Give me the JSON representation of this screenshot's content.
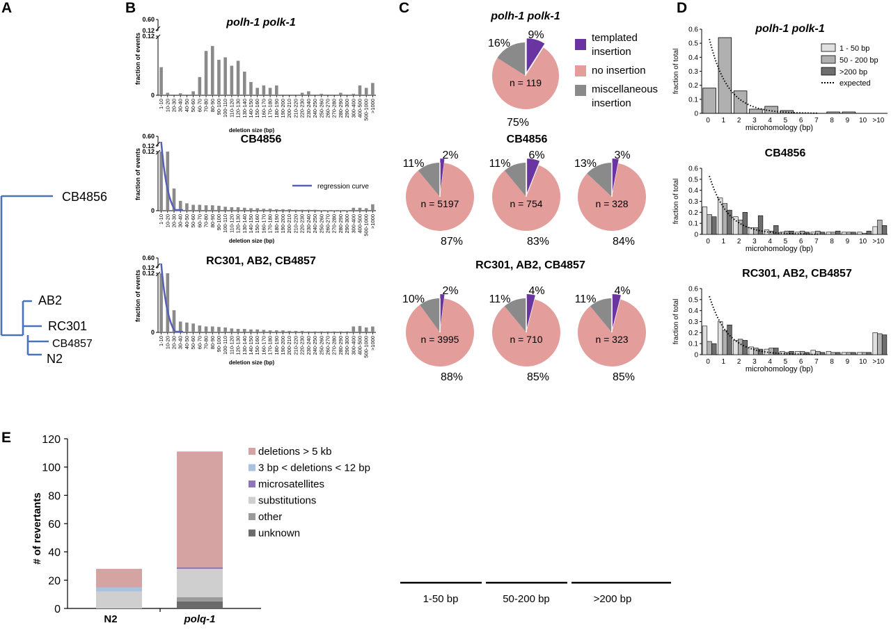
{
  "panels": {
    "A": "A",
    "B": "B",
    "C": "C",
    "D": "D",
    "E": "E"
  },
  "colors": {
    "tree": "#4a72b8",
    "bar_gray": "#8a8a8a",
    "regression": "#5560b6",
    "templated": "#6a35a0",
    "no_insertion": "#e39d9b",
    "misc": "#8a8a8a",
    "d_small": "#e0e0e0",
    "d_mid": "#b0b0b0",
    "d_large": "#6e6e6e",
    "e_del5kb": "#d5a3a1",
    "e_del3_12": "#a9c2e0",
    "e_micro": "#8f74b8",
    "e_subst": "#cfcfcf",
    "e_other": "#9a9a9a",
    "e_unknown": "#6a6a6a"
  },
  "tree": {
    "leaves": [
      "CB4856",
      "AB2",
      "RC301",
      "CB4857",
      "N2"
    ]
  },
  "chart_data": [
    {
      "id": "B",
      "type": "bar",
      "title_top": "polh-1 polk-1",
      "title_mid": "CB4856",
      "title_bot": "RC301, AB2, CB4857",
      "ylabel": "fraction of events",
      "xlabel": "deletion size (bp)",
      "yticks": [
        "0",
        "0.12",
        "0.12",
        "0.60"
      ],
      "legend": "regression curve",
      "categories": [
        "1-10",
        "10-20",
        "20-30",
        "30-40",
        "40-50",
        "50-60",
        "60-70",
        "70-80",
        "80-90",
        "90-100",
        "100-110",
        "110-120",
        "120-130",
        "130-140",
        "140-150",
        "150-160",
        "160-170",
        "170-180",
        "180-190",
        "190-200",
        "200-210",
        "210-220",
        "220-230",
        "230-240",
        "240-250",
        "250-260",
        "260-270",
        "270-280",
        "280-290",
        "290-300",
        "300-400",
        "400-500",
        "500-1000",
        ">1000"
      ],
      "series": [
        {
          "name": "polh-1 polk-1",
          "values": [
            0.057,
            0.005,
            0,
            0.004,
            0,
            0.008,
            0.037,
            0.09,
            0.1,
            0.072,
            0.077,
            0.06,
            0.07,
            0.048,
            0.027,
            0.015,
            0.02,
            0.015,
            0.02,
            0,
            0,
            0,
            0.005,
            0.008,
            0,
            0.003,
            0,
            0,
            0.005,
            0,
            0.003,
            0.02,
            0.015,
            0.025
          ]
        },
        {
          "name": "CB4856",
          "values": [
            0.12,
            0.12,
            0.045,
            0.02,
            0.015,
            0.012,
            0.012,
            0.011,
            0.011,
            0.01,
            0.008,
            0.007,
            0.007,
            0.006,
            0.005,
            0.005,
            0.004,
            0.004,
            0.003,
            0.003,
            0.003,
            0.002,
            0.002,
            0.002,
            0.002,
            0.001,
            0.001,
            0.001,
            0.001,
            0.001,
            0.006,
            0.006,
            0.005,
            0.013
          ]
        },
        {
          "name": "RC301, AB2, CB4857",
          "values": [
            0.12,
            0.12,
            0.045,
            0.022,
            0.02,
            0.018,
            0.014,
            0.012,
            0.012,
            0.011,
            0.01,
            0.008,
            0.007,
            0.007,
            0.006,
            0.006,
            0.005,
            0.004,
            0.004,
            0.004,
            0.003,
            0.003,
            0.003,
            0.002,
            0.002,
            0.002,
            0.002,
            0.002,
            0.002,
            0.002,
            0.012,
            0.013,
            0.01,
            0.012
          ]
        }
      ]
    },
    {
      "id": "C",
      "type": "pie",
      "title_top": "polh-1 polk-1",
      "title_mid": "CB4856",
      "title_bot": "RC301, AB2, CB4857",
      "legend": [
        "templated insertion",
        "no insertion",
        "miscellaneous insertion"
      ],
      "columns": [
        "1-50 bp",
        "50-200 bp",
        ">200 bp"
      ],
      "pies": [
        {
          "group": "polh-1 polk-1",
          "n": "n = 119",
          "templated": 9,
          "no_insertion": 75,
          "misc": 16,
          "lt": "9%",
          "lb": "75%",
          "lm": "16%"
        },
        {
          "group": "CB4856",
          "col": "1-50 bp",
          "n": "n = 5197",
          "templated": 2,
          "no_insertion": 87,
          "misc": 11,
          "lt": "2%",
          "lb": "87%",
          "lm": "11%"
        },
        {
          "group": "CB4856",
          "col": "50-200 bp",
          "n": "n = 754",
          "templated": 6,
          "no_insertion": 83,
          "misc": 11,
          "lt": "6%",
          "lb": "83%",
          "lm": "11%"
        },
        {
          "group": "CB4856",
          "col": ">200 bp",
          "n": "n = 328",
          "templated": 3,
          "no_insertion": 84,
          "misc": 13,
          "lt": "3%",
          "lb": "84%",
          "lm": "13%"
        },
        {
          "group": "RC301, AB2, CB4857",
          "col": "1-50 bp",
          "n": "n = 3995",
          "templated": 2,
          "no_insertion": 88,
          "misc": 10,
          "lt": "2%",
          "lb": "88%",
          "lm": "10%"
        },
        {
          "group": "RC301, AB2, CB4857",
          "col": "50-200 bp",
          "n": "n = 710",
          "templated": 4,
          "no_insertion": 85,
          "misc": 11,
          "lt": "4%",
          "lb": "85%",
          "lm": "11%"
        },
        {
          "group": "RC301, AB2, CB4857",
          "col": ">200 bp",
          "n": "n = 323",
          "templated": 4,
          "no_insertion": 85,
          "misc": 11,
          "lt": "4%",
          "lb": "85%",
          "lm": "11%"
        }
      ]
    },
    {
      "id": "D",
      "type": "bar",
      "title_top": "polh-1 polk-1",
      "title_mid": "CB4856",
      "title_bot": "RC301, AB2, CB4857",
      "ylabel": "fraction of total",
      "xlabel": "microhomology (bp)",
      "yticks": [
        "0",
        "0.1",
        "0.2",
        "0.3",
        "0.4",
        "0.5",
        "0.6"
      ],
      "categories": [
        "0",
        "1",
        "2",
        "3",
        "4",
        "5",
        "6",
        "7",
        "8",
        "9",
        "10",
        ">10"
      ],
      "legend": [
        "1 - 50 bp",
        "50 - 200 bp",
        ">200 bp",
        "expected"
      ],
      "panels": [
        {
          "name": "polh-1 polk-1",
          "single": true,
          "values": [
            0.18,
            0.54,
            0.16,
            0.03,
            0.05,
            0.02,
            0,
            0,
            0.01,
            0.01,
            0,
            0
          ]
        },
        {
          "name": "CB4856",
          "series": [
            {
              "name": "1 - 50 bp",
              "values": [
                0.25,
                0.33,
                0.16,
                0.06,
                0.04,
                0.02,
                0.02,
                0.02,
                0.02,
                0.02,
                0.02,
                0.07
              ]
            },
            {
              "name": "50 - 200 bp",
              "values": [
                0.18,
                0.28,
                0.13,
                0.06,
                0.03,
                0.03,
                0.03,
                0.03,
                0.02,
                0.02,
                0.01,
                0.13
              ]
            },
            {
              "name": ">200 bp",
              "values": [
                0.16,
                0.22,
                0.2,
                0.17,
                0.08,
                0.03,
                0.02,
                0.02,
                0.03,
                0.02,
                0.03,
                0.08
              ]
            }
          ]
        },
        {
          "name": "RC301, AB2, CB4857",
          "series": [
            {
              "name": "1 - 50 bp",
              "values": [
                0.26,
                0.3,
                0.13,
                0.07,
                0.05,
                0.03,
                0.03,
                0.04,
                0.03,
                0.02,
                0.02,
                0.2
              ]
            },
            {
              "name": "50 - 200 bp",
              "values": [
                0.12,
                0.22,
                0.14,
                0.06,
                0.06,
                0.02,
                0.03,
                0.03,
                0.02,
                0.02,
                0.02,
                0.19
              ]
            },
            {
              "name": ">200 bp",
              "values": [
                0.1,
                0.27,
                0.13,
                0.05,
                0.06,
                0.03,
                0.02,
                0.02,
                0.02,
                0.02,
                0.02,
                0.18
              ]
            }
          ]
        }
      ]
    },
    {
      "id": "E",
      "type": "bar",
      "stacked": true,
      "ylabel": "# of revertants",
      "ylim": [
        0,
        120
      ],
      "yticks": [
        "0",
        "20",
        "40",
        "60",
        "80",
        "100",
        "120"
      ],
      "categories": [
        "N2",
        "polq-1"
      ],
      "series": [
        {
          "name": "unknown",
          "values": [
            0,
            5
          ]
        },
        {
          "name": "other",
          "values": [
            0,
            3
          ]
        },
        {
          "name": "substitutions",
          "values": [
            12,
            20
          ]
        },
        {
          "name": "microsatellites",
          "values": [
            0,
            1
          ]
        },
        {
          "name": "3 bp < deletions < 12 bp",
          "values": [
            3,
            0
          ]
        },
        {
          "name": "deletions > 5 kb",
          "values": [
            13,
            82
          ]
        }
      ],
      "legend": [
        "deletions > 5 kb",
        "3 bp < deletions < 12 bp",
        "microsatellites",
        "substitutions",
        "other",
        "unknown"
      ]
    }
  ]
}
